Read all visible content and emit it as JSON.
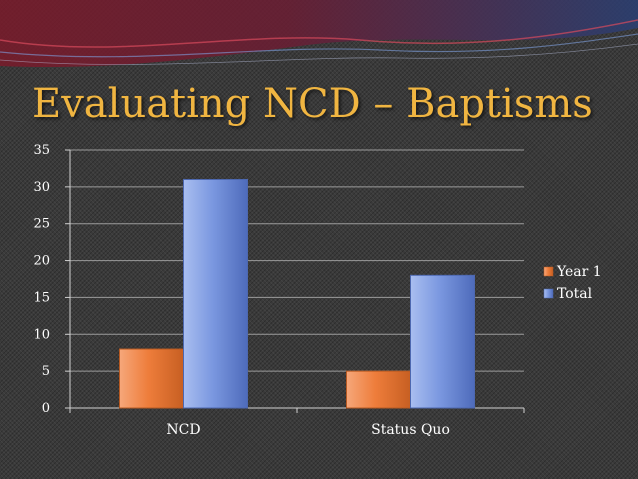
{
  "slide": {
    "title": "Evaluating NCD – Baptisms"
  },
  "colors": {
    "year1": "#ee7d3b",
    "total": "#6f8fd8",
    "title": "#f0b541",
    "banner_red": "#8a1e2e",
    "banner_blue": "#2a4478"
  },
  "chart_data": {
    "type": "bar",
    "title": "",
    "xlabel": "",
    "ylabel": "",
    "categories": [
      "NCD",
      "Status Quo"
    ],
    "series": [
      {
        "name": "Year 1",
        "values": [
          8,
          5
        ]
      },
      {
        "name": "Total",
        "values": [
          31,
          18
        ]
      }
    ],
    "ylim": [
      0,
      35
    ],
    "yticks": [
      0,
      5,
      10,
      15,
      20,
      25,
      30,
      35
    ],
    "grid": true,
    "legend": "right"
  }
}
